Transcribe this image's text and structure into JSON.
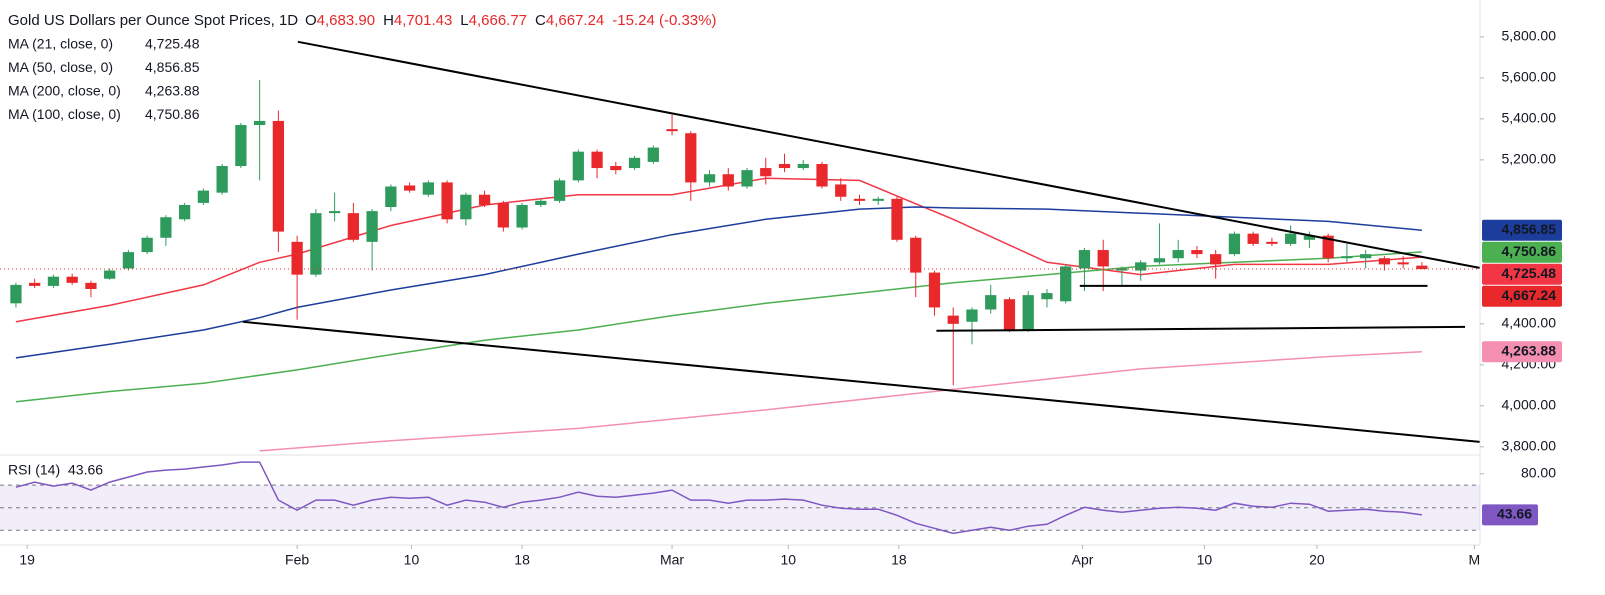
{
  "chart_data": {
    "type": "candlestick",
    "title": "Gold US Dollars per Ounce Spot Prices, 1D",
    "ohlc_header": [
      {
        "key": "O",
        "label": "4,683.90"
      },
      {
        "key": "H",
        "label": "4,701.43"
      },
      {
        "key": "L",
        "label": "4,666.77"
      },
      {
        "key": "C",
        "label": "4,667.24"
      }
    ],
    "change": "-15.24 (-0.33%)",
    "up_color": "#2e9a5c",
    "down_color": "#e8282b",
    "xlim": [
      -0.85,
      78.1
    ],
    "xticks": [
      {
        "value": 0.6,
        "label": "19"
      },
      {
        "value": 15,
        "label": "Feb"
      },
      {
        "value": 21.1,
        "label": "10"
      },
      {
        "value": 27,
        "label": "18"
      },
      {
        "value": 35,
        "label": "Mar"
      },
      {
        "value": 41.2,
        "label": "10"
      },
      {
        "value": 47.1,
        "label": "18"
      },
      {
        "value": 56.9,
        "label": "Apr"
      },
      {
        "value": 63.4,
        "label": "10"
      },
      {
        "value": 69.4,
        "label": "20"
      },
      {
        "value": 77.8,
        "label": "M"
      }
    ],
    "ylim": [
      3760,
      5980
    ],
    "yticks": [
      {
        "value": 5800,
        "label": "5,800.00"
      },
      {
        "value": 5600,
        "label": "5,600.00"
      },
      {
        "value": 5400,
        "label": "5,400.00"
      },
      {
        "value": 5200,
        "label": "5,200.00"
      },
      {
        "value": 4400,
        "label": "4,400.00"
      },
      {
        "value": 4200,
        "label": "4,200.00"
      },
      {
        "value": 4000,
        "label": "4,000.00"
      },
      {
        "value": 3800,
        "label": "3,800.00"
      }
    ],
    "open": [
      4500,
      4600,
      4585,
      4630,
      4600,
      4620,
      4670,
      4750,
      4820,
      4910,
      4990,
      5040,
      5170,
      5370,
      5390,
      4800,
      4640,
      4940,
      4940,
      4800,
      4970,
      5075,
      5030,
      5090,
      4910,
      5030,
      4990,
      4870,
      4980,
      5000,
      5100,
      5240,
      5170,
      5160,
      5190,
      5350,
      5330,
      5090,
      5130,
      5070,
      5160,
      5180,
      5160,
      5180,
      5080,
      5010,
      5000,
      5010,
      4820,
      4650,
      4440,
      4410,
      4470,
      4520,
      4370,
      4520,
      4510,
      4670,
      4760,
      4660,
      4660,
      4700,
      4720,
      4760,
      4740,
      4740,
      4840,
      4800,
      4790,
      4810,
      4830,
      4720,
      4720,
      4720,
      4700,
      4683.9
    ],
    "high": [
      4600,
      4620,
      4640,
      4645,
      4610,
      4670,
      4760,
      4830,
      4930,
      4990,
      5060,
      5180,
      5380,
      5590,
      5440,
      4830,
      4960,
      5040,
      4990,
      4960,
      5080,
      5090,
      5100,
      5100,
      5040,
      5050,
      5000,
      4990,
      5010,
      5110,
      5250,
      5250,
      5190,
      5220,
      5270,
      5420,
      5340,
      5150,
      5160,
      5160,
      5210,
      5230,
      5200,
      5190,
      5110,
      5030,
      5020,
      5020,
      4830,
      4660,
      4480,
      4480,
      4590,
      4530,
      4560,
      4570,
      4690,
      4770,
      4810,
      4680,
      4710,
      4890,
      4810,
      4780,
      4760,
      4850,
      4850,
      4820,
      4880,
      4850,
      4840,
      4790,
      4760,
      4730,
      4730,
      4701.43
    ],
    "low": [
      4480,
      4575,
      4575,
      4590,
      4530,
      4615,
      4660,
      4740,
      4780,
      4900,
      4980,
      5030,
      5160,
      5100,
      4750,
      4420,
      4630,
      4900,
      4800,
      4660,
      4950,
      5040,
      5020,
      4890,
      4880,
      4970,
      4850,
      4860,
      4970,
      4990,
      5090,
      5110,
      5130,
      5150,
      5180,
      5320,
      5000,
      5070,
      5050,
      5060,
      5080,
      5140,
      5150,
      5060,
      5000,
      4980,
      4980,
      4800,
      4530,
      4440,
      4100,
      4300,
      4450,
      4360,
      4360,
      4480,
      4500,
      4560,
      4560,
      4590,
      4610,
      4690,
      4700,
      4720,
      4620,
      4730,
      4780,
      4780,
      4780,
      4770,
      4700,
      4700,
      4670,
      4660,
      4670,
      4666.77
    ],
    "close": [
      4590,
      4585,
      4630,
      4600,
      4570,
      4660,
      4750,
      4820,
      4920,
      4980,
      5050,
      5170,
      5370,
      5390,
      4850,
      4640,
      4940,
      4950,
      4810,
      4950,
      5070,
      5050,
      5090,
      4910,
      5030,
      4980,
      4870,
      4980,
      5000,
      5100,
      5240,
      5160,
      5150,
      5210,
      5260,
      5340,
      5090,
      5130,
      5070,
      5150,
      5120,
      5160,
      5180,
      5070,
      5020,
      5000,
      5010,
      4810,
      4650,
      4480,
      4400,
      4470,
      4540,
      4370,
      4540,
      4550,
      4680,
      4760,
      4680,
      4670,
      4700,
      4720,
      4760,
      4740,
      4690,
      4840,
      4790,
      4790,
      4840,
      4830,
      4720,
      4730,
      4740,
      4690,
      4690,
      4667.24
    ],
    "series": [
      {
        "name": "MA (21, close, 0)",
        "color": "#f23645",
        "last_label": "4,725.48",
        "x": [
          0,
          5,
          10,
          13,
          15,
          20,
          25,
          30,
          35,
          40,
          45,
          50,
          55,
          60,
          65,
          70,
          75
        ],
        "values": [
          4410,
          4490,
          4590,
          4700,
          4740,
          4880,
          4980,
          5030,
          5030,
          5110,
          5100,
          4910,
          4700,
          4640,
          4690,
          4690,
          4725.48
        ]
      },
      {
        "name": "MA (50, close, 0)",
        "color": "#1c3d9c",
        "last_label": "4,856.85",
        "x": [
          0,
          5,
          10,
          13,
          15,
          20,
          25,
          30,
          35,
          40,
          45,
          48,
          50,
          55,
          60,
          65,
          70,
          75
        ],
        "values": [
          4234,
          4300,
          4370,
          4430,
          4480,
          4565,
          4640,
          4740,
          4835,
          4910,
          4960,
          4970,
          4965,
          4960,
          4940,
          4920,
          4900,
          4856.85
        ]
      },
      {
        "name": "MA (200, close, 0)",
        "color": "#f48fb1",
        "last_label": "4,263.88",
        "x": [
          13,
          20,
          30,
          40,
          50,
          60,
          70,
          75
        ],
        "values": [
          3780,
          3830,
          3890,
          3980,
          4080,
          4180,
          4240,
          4263.88
        ]
      },
      {
        "name": "MA (100, close, 0)",
        "color": "#4caf50",
        "last_label": "4,750.86",
        "x": [
          0,
          5,
          10,
          15,
          20,
          25,
          30,
          35,
          40,
          45,
          50,
          55,
          60,
          65,
          70,
          75
        ],
        "values": [
          4020,
          4070,
          4110,
          4175,
          4250,
          4320,
          4370,
          4440,
          4500,
          4550,
          4600,
          4640,
          4680,
          4700,
          4720,
          4750.86
        ]
      }
    ],
    "trendline_color": "#000000",
    "trendlines": [
      {
        "x": [
          15.04,
          78.08
        ],
        "values": [
          5776,
          4673
        ]
      },
      {
        "x": [
          12.1,
          78.08
        ],
        "values": [
          4410,
          3824
        ]
      },
      {
        "x": [
          56.75,
          75.3
        ],
        "values": [
          4585,
          4585
        ]
      },
      {
        "x": [
          49.1,
          77.3
        ],
        "values": [
          4366,
          4385
        ]
      }
    ],
    "rsi": {
      "name": "RSI (14)",
      "color": "#7e57c2",
      "last_label": "43.66",
      "ylim": [
        17,
        94
      ],
      "yticks": [
        {
          "value": 80,
          "label": "80.00"
        }
      ],
      "levels": [
        70,
        50,
        30
      ],
      "values": [
        68.2,
        72.7,
        69.1,
        71.8,
        65.6,
        72.7,
        77.1,
        81.6,
        83.3,
        84.2,
        86,
        87.8,
        90.4,
        90.4,
        56.7,
        47.8,
        56.7,
        56.7,
        52.2,
        56.7,
        59.3,
        58.4,
        59.3,
        52.2,
        56.7,
        54.9,
        50.4,
        54.9,
        56.7,
        59.3,
        63.8,
        60.2,
        59.3,
        61.1,
        62.9,
        65.6,
        56.7,
        56.7,
        54,
        56.7,
        56.7,
        57.6,
        56.7,
        52.2,
        49.6,
        48.7,
        48.7,
        43.3,
        36.2,
        31.8,
        27.3,
        30,
        32.7,
        30,
        33.6,
        35.3,
        43.3,
        50.4,
        47.8,
        46,
        47.8,
        49.6,
        50.4,
        49.6,
        47.8,
        54,
        51.3,
        50.4,
        54,
        53.1,
        46.9,
        47.8,
        48.7,
        46.9,
        46,
        43.66
      ]
    }
  }
}
